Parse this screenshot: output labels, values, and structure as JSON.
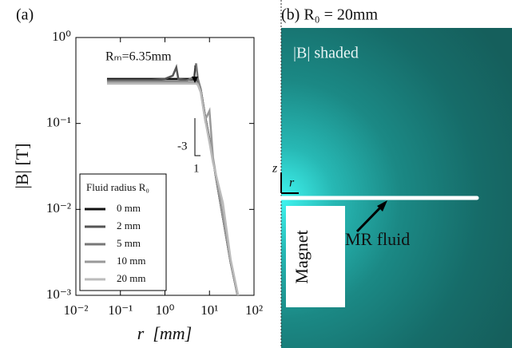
{
  "chart_data": {
    "type": "line",
    "panel_label": "(a)",
    "xlabel": "r  [mm]",
    "ylabel": "|B|  [T]",
    "log_x": true,
    "log_y": true,
    "xlim": [
      0.01,
      100
    ],
    "ylim": [
      0.001,
      1
    ],
    "xticks": [
      {
        "value": 0.01,
        "label": "10⁻²"
      },
      {
        "value": 0.1,
        "label": "10⁻¹"
      },
      {
        "value": 1,
        "label": "10⁰"
      },
      {
        "value": 10,
        "label": "10¹"
      },
      {
        "value": 100,
        "label": "10²"
      }
    ],
    "yticks": [
      {
        "value": 0.001,
        "label": "10⁻³"
      },
      {
        "value": 0.01,
        "label": "10⁻²"
      },
      {
        "value": 0.1,
        "label": "10⁻¹"
      },
      {
        "value": 1,
        "label": "10⁰"
      }
    ],
    "x": [
      0.05,
      0.1,
      0.5,
      1,
      1.5,
      1.8,
      2,
      3,
      4.5,
      5,
      5.5,
      6.35,
      8,
      10,
      12,
      20,
      30,
      45
    ],
    "series": [
      {
        "name": "0 mm",
        "color": "#111111",
        "values": [
          0.33,
          0.33,
          0.33,
          0.33,
          0.33,
          0.33,
          0.33,
          0.33,
          0.33,
          0.33,
          0.32,
          0.25,
          0.12,
          0.065,
          0.038,
          0.0081,
          0.0024,
          0.00089
        ]
      },
      {
        "name": "2 mm",
        "color": "#555555",
        "values": [
          0.32,
          0.32,
          0.32,
          0.33,
          0.36,
          0.45,
          0.33,
          0.32,
          0.32,
          0.32,
          0.31,
          0.25,
          0.12,
          0.065,
          0.038,
          0.0081,
          0.0024,
          0.00089
        ]
      },
      {
        "name": "5 mm",
        "color": "#777777",
        "values": [
          0.31,
          0.31,
          0.31,
          0.31,
          0.31,
          0.31,
          0.31,
          0.31,
          0.35,
          0.5,
          0.33,
          0.25,
          0.12,
          0.065,
          0.038,
          0.0081,
          0.0024,
          0.00089
        ]
      },
      {
        "name": "10 mm",
        "color": "#999999",
        "values": [
          0.3,
          0.3,
          0.3,
          0.3,
          0.3,
          0.3,
          0.3,
          0.3,
          0.3,
          0.3,
          0.29,
          0.24,
          0.11,
          0.14,
          0.04,
          0.0085,
          0.0025,
          0.0009
        ]
      },
      {
        "name": "20 mm",
        "color": "#bbbbbb",
        "values": [
          0.29,
          0.29,
          0.29,
          0.29,
          0.29,
          0.29,
          0.29,
          0.29,
          0.29,
          0.29,
          0.28,
          0.23,
          0.11,
          0.06,
          0.035,
          0.012,
          0.0026,
          0.00095
        ]
      }
    ],
    "legend_title": "Fluid radius R₀",
    "legend_position": "lower left",
    "annotation": "Rₘ=6.35mm",
    "slope_label": "-3",
    "slope_run_label": "1"
  },
  "panel_b": {
    "label": "(b) R₀ = 20mm",
    "shading_label": "|B| shaded",
    "axis_z": "z",
    "axis_r": "r",
    "magnet_label": "Magnet",
    "fluid_label": "MR fluid"
  }
}
